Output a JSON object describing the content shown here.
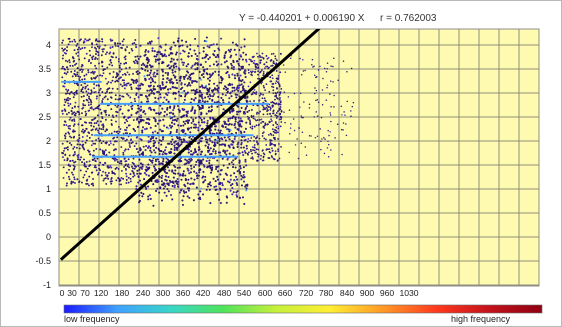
{
  "equation_text": "Y = -0.440201 + 0.006190 X",
  "correlation_text": "r = 0.762003",
  "legend": {
    "low_label": "low frequency",
    "high_label": "high frequency",
    "gradient_colors": [
      "#1a1aff",
      "#3fa0ff",
      "#37d6c9",
      "#4fe35a",
      "#c6f03a",
      "#ffee33",
      "#ff9a26",
      "#ff3a1f",
      "#c4121b",
      "#8f0010"
    ]
  },
  "colors": {
    "plot_background": "#fefbb0",
    "grid": "#8f8f7a",
    "points_dark": "#2a1577",
    "points_mid": "#3f25ab",
    "points_light": "#5a2fd1",
    "points_cyan": "#45a2ff",
    "fit_line": "#000000"
  },
  "chart_data": {
    "type": "scatter",
    "title": "",
    "xlabel": "",
    "ylabel": "",
    "xlim": [
      0,
      1030
    ],
    "ylim": [
      -1,
      4.25
    ],
    "x_ticks": [
      0,
      30,
      70,
      120,
      180,
      240,
      300,
      360,
      420,
      480,
      540,
      600,
      660,
      720,
      780,
      840,
      900,
      960,
      1030
    ],
    "x_tick_labels": [
      "0",
      "30",
      "70",
      "120",
      "180",
      "240",
      "300",
      "360",
      "420",
      "480",
      "540",
      "600",
      "660",
      "720",
      "780",
      "840",
      "900",
      "960",
      "1030"
    ],
    "y_ticks": [
      -1,
      -0.5,
      0,
      0.5,
      1,
      1.5,
      2,
      2.5,
      3,
      3.5,
      4
    ],
    "y_tick_labels": [
      "-1",
      "-0.5",
      "0",
      "0.5",
      "1",
      "1.5",
      "2",
      "2.5",
      "3",
      "3.5",
      "4"
    ],
    "grid": true,
    "regression": {
      "intercept": -0.440201,
      "slope": 0.00619
    },
    "density_regions": [
      {
        "x": [
          0,
          220
        ],
        "y": [
          1.05,
          4.05
        ],
        "density": "high"
      },
      {
        "x": [
          220,
          550
        ],
        "y": [
          0.85,
          3.85
        ],
        "density": "high"
      },
      {
        "x": [
          550,
          650
        ],
        "y": [
          1.55,
          3.75
        ],
        "density": "medium"
      },
      {
        "x": [
          650,
          860
        ],
        "y": [
          1.6,
          3.75
        ],
        "density": "low"
      }
    ]
  }
}
